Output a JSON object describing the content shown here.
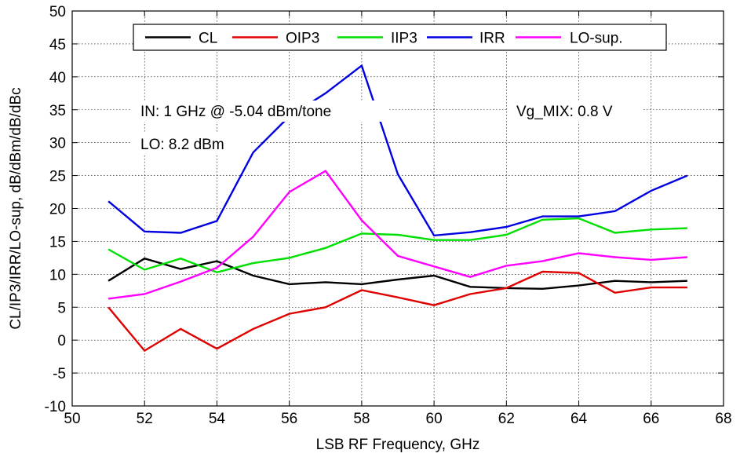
{
  "chart_data": {
    "type": "line",
    "xlabel": "LSB RF Frequency, GHz",
    "ylabel": "CL/IP3/IRR/LO-sup, dB/dBm/dB/dBc",
    "xlim": [
      50,
      68
    ],
    "ylim": [
      -10,
      50
    ],
    "xticks": [
      50,
      52,
      54,
      56,
      58,
      60,
      62,
      64,
      66,
      68
    ],
    "yticks": [
      -10,
      -5,
      0,
      5,
      10,
      15,
      20,
      25,
      30,
      35,
      40,
      45,
      50
    ],
    "grid": true,
    "legend_position": "top",
    "x": [
      51,
      52,
      53,
      54,
      55,
      56,
      57,
      58,
      59,
      60,
      61,
      62,
      63,
      64,
      65,
      66,
      67
    ],
    "series": [
      {
        "name": "CL",
        "color": "#000000",
        "values": [
          9.0,
          12.4,
          10.8,
          12.0,
          9.8,
          8.5,
          8.8,
          8.5,
          9.2,
          9.8,
          8.1,
          7.9,
          7.8,
          8.3,
          9.0,
          8.8,
          9.0
        ]
      },
      {
        "name": "OIP3",
        "color": "#e00000",
        "values": [
          5.0,
          -1.6,
          1.7,
          -1.3,
          1.7,
          4.0,
          5.0,
          7.6,
          6.5,
          5.3,
          7.0,
          7.9,
          10.4,
          10.2,
          7.2,
          8.0,
          8.0
        ]
      },
      {
        "name": "IIP3",
        "color": "#00e000",
        "values": [
          13.8,
          10.7,
          12.4,
          10.3,
          11.7,
          12.5,
          14.0,
          16.2,
          16.0,
          15.2,
          15.2,
          16.0,
          18.3,
          18.5,
          16.3,
          16.8,
          17.0
        ]
      },
      {
        "name": "IRR",
        "color": "#0000e0",
        "values": [
          21.1,
          16.5,
          16.3,
          18.1,
          28.5,
          34.0,
          37.5,
          41.7,
          25.2,
          15.9,
          16.4,
          17.2,
          18.8,
          18.8,
          19.6,
          22.7,
          25.0
        ]
      },
      {
        "name": "LO-sup.",
        "color": "#ff00ff",
        "values": [
          6.3,
          7.0,
          8.9,
          11.0,
          15.7,
          22.5,
          25.7,
          18.2,
          12.8,
          11.2,
          9.6,
          11.3,
          12.0,
          13.2,
          12.6,
          12.2,
          12.6
        ]
      }
    ],
    "annotations": [
      {
        "id": "in",
        "text": "IN: 1 GHz @ -5.04 dBm/tone"
      },
      {
        "id": "lo",
        "text": "LO: 8.2 dBm"
      },
      {
        "id": "vg",
        "text": "Vg_MIX: 0.8 V"
      }
    ]
  }
}
